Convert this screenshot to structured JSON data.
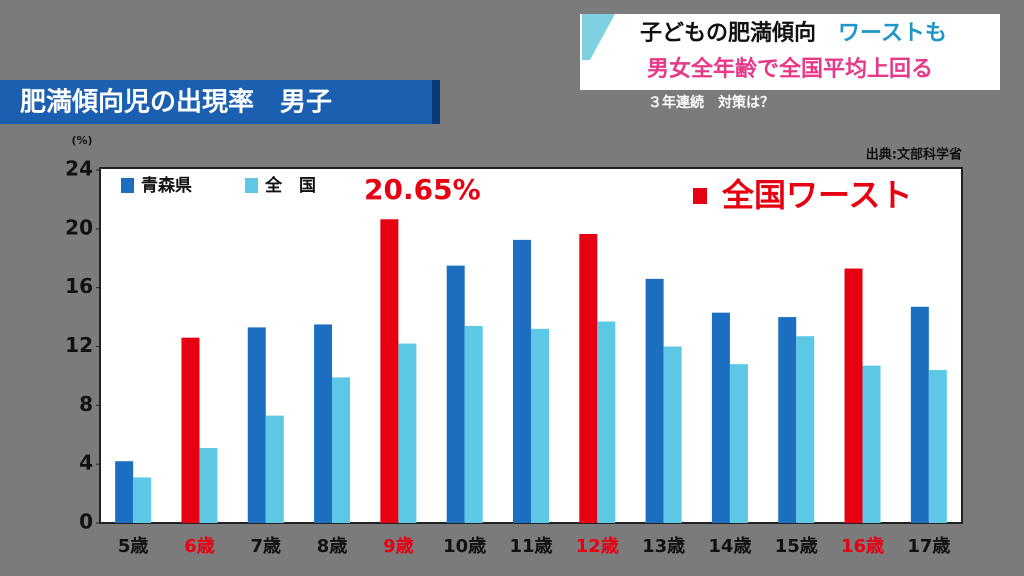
{
  "header": {
    "headline_1": "子どもの肥満傾向",
    "headline_1_accent": "ワーストも",
    "headline_2": "男女全年齢で全国平均上回る",
    "subline": "３年連続　対策は？"
  },
  "chart_data": {
    "type": "bar",
    "title": "肥満傾向児の出現率　男子",
    "y_unit": "(%)",
    "source": "出典:文部科学省",
    "categories": [
      "5歳",
      "6歳",
      "7歳",
      "8歳",
      "9歳",
      "10歳",
      "11歳",
      "12歳",
      "13歳",
      "14歳",
      "15歳",
      "16歳",
      "17歳"
    ],
    "category_colors": [
      "#111111",
      "#e60012",
      "#111111",
      "#111111",
      "#e60012",
      "#111111",
      "#111111",
      "#e60012",
      "#111111",
      "#111111",
      "#111111",
      "#e60012",
      "#111111"
    ],
    "series": [
      {
        "name": "青森県",
        "color": "#1c6fc0",
        "point_colors": [
          "#1c6fc0",
          "#e60012",
          "#1c6fc0",
          "#1c6fc0",
          "#e60012",
          "#1c6fc0",
          "#1c6fc0",
          "#e60012",
          "#1c6fc0",
          "#1c6fc0",
          "#1c6fc0",
          "#e60012",
          "#1c6fc0"
        ],
        "values": [
          4.2,
          12.6,
          13.3,
          13.5,
          20.65,
          17.5,
          19.25,
          19.65,
          16.6,
          14.3,
          14.0,
          17.3,
          14.7
        ]
      },
      {
        "name": "全　国",
        "color": "#5cc8e6",
        "values": [
          3.1,
          5.1,
          7.3,
          9.9,
          12.2,
          13.4,
          13.2,
          13.7,
          12.0,
          10.8,
          12.7,
          10.7,
          10.4
        ]
      }
    ],
    "annotation": "20.65%",
    "highlight_legend": {
      "name": "全国ワースト",
      "color": "#e60012"
    },
    "ylim": [
      0,
      24
    ],
    "yticks": [
      0,
      4,
      8,
      12,
      16,
      20,
      24
    ],
    "grid": false
  }
}
